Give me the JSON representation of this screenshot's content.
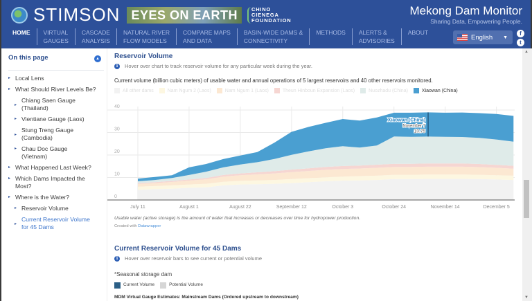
{
  "header": {
    "brand": "STIMSON",
    "partner_logo": "EYES ON EARTH",
    "foundation": [
      "CHINO",
      "CIENEGA",
      "FOUNDATION"
    ],
    "site_title": "Mekong Dam Monitor",
    "tagline": "Sharing Data, Empowering People.",
    "nav": [
      {
        "line1": "HOME",
        "line2": ""
      },
      {
        "line1": "VIRTUAL",
        "line2": "GAUGES"
      },
      {
        "line1": "CASCADE",
        "line2": "ANALYSIS"
      },
      {
        "line1": "NATURAL RIVER",
        "line2": "FLOW MODELS"
      },
      {
        "line1": "COMPARE MAPS",
        "line2": "AND DATA"
      },
      {
        "line1": "BASIN-WIDE DAMS &",
        "line2": "CONNECTIVITY"
      },
      {
        "line1": "METHODS",
        "line2": ""
      },
      {
        "line1": "ALERTS &",
        "line2": "ADVISORIES"
      },
      {
        "line1": "ABOUT",
        "line2": ""
      }
    ],
    "language": "English",
    "social": {
      "facebook": "f",
      "twitter": "t"
    }
  },
  "sidebar": {
    "title": "On this page",
    "items": [
      {
        "label": "Local Lens",
        "level": 1,
        "active": false
      },
      {
        "label": "What Should River Levels Be?",
        "level": 1,
        "active": false
      },
      {
        "label": "Chiang Saen Gauge (Thailand)",
        "level": 2,
        "active": false
      },
      {
        "label": "Vientiane Gauge (Laos)",
        "level": 2,
        "active": false
      },
      {
        "label": "Stung Treng Gauge (Cambodia)",
        "level": 2,
        "active": false
      },
      {
        "label": "Chau Doc Gauge (Vietnam)",
        "level": 2,
        "active": false
      },
      {
        "label": "What Happened Last Week?",
        "level": 1,
        "active": false
      },
      {
        "label": "Which Dams Impacted the Most?",
        "level": 1,
        "active": false
      },
      {
        "label": "Where is the Water?",
        "level": 1,
        "active": false
      },
      {
        "label": "Reservoir Volume",
        "level": 2,
        "active": false
      },
      {
        "label": "Current Reservoir Volume for 45 Dams",
        "level": 2,
        "active": true
      }
    ]
  },
  "main": {
    "section1_title": "Reservoir Volume",
    "section1_info": "Hover over chart to track reservoir volume for any particular week during the year.",
    "chart_desc": "Current volume (billion cubic meters) of usable water and annual operations of 5 largest reservoirs and 40 other reservoirs monitored.",
    "footnote": "Usable water (active storage) is the amount of water that increases or decreases over time for hydropower production.",
    "credit_prefix": "Created with ",
    "credit_link": "Datawrapper",
    "section2_title": "Current Reservoir Volume for 45 Dams",
    "section2_info": "Hover over reservoir bars to see current or potential volume",
    "seasonal_note": "*Seasonal storage dam",
    "legend2": [
      {
        "label": "Current Volume",
        "color": "#2b5f86"
      },
      {
        "label": "Potential Volume",
        "color": "#d6d6d6"
      }
    ],
    "mdm_heading": "MDM Virtual Gauge Estimates: Mainstream Dams (Ordered upstream to downstream)"
  },
  "chart_data": {
    "type": "area",
    "stacked": true,
    "title": "Current volume (billion cubic meters) of usable water and annual operations of 5 largest reservoirs and 40 other reservoirs monitored.",
    "xlabel": "",
    "ylabel": "",
    "ylim": [
      0,
      40
    ],
    "yticks": [
      0,
      10,
      20,
      30,
      40
    ],
    "grid": true,
    "legend_position": "top-left",
    "x": [
      "July 11",
      "July 18",
      "July 25",
      "August 1",
      "August 8",
      "August 15",
      "August 22",
      "August 29",
      "September 5",
      "September 12",
      "September 19",
      "September 26",
      "October 3",
      "October 10",
      "October 17",
      "October 24",
      "October 31",
      "November 7",
      "November 14",
      "November 21",
      "November 28",
      "December 5",
      "December 12"
    ],
    "xticks": [
      "July 11",
      "August 1",
      "August 22",
      "September 12",
      "October 3",
      "October 24",
      "November 14",
      "December 5"
    ],
    "series": [
      {
        "name": "All other dams",
        "color": "#f2f2f2",
        "values": [
          4.5,
          4.8,
          5.0,
          5.4,
          5.6,
          6.5,
          6.9,
          7.0,
          7.2,
          7.5,
          7.9,
          8.3,
          8.6,
          8.7,
          8.9,
          9.3,
          9.3,
          9.4,
          9.4,
          9.4,
          9.3,
          9.1,
          8.9
        ]
      },
      {
        "name": "Nam Ngum 2 (Laos)",
        "color": "#fdf7e1",
        "values": [
          1.4,
          1.4,
          1.5,
          1.5,
          1.6,
          1.6,
          1.6,
          1.7,
          1.7,
          1.8,
          1.8,
          1.8,
          1.8,
          1.9,
          1.9,
          1.9,
          1.9,
          1.9,
          1.9,
          1.9,
          1.9,
          1.9,
          1.9
        ]
      },
      {
        "name": "Nam Ngum 1 (Laos)",
        "color": "#fce8d2",
        "values": [
          1.2,
          1.3,
          1.5,
          1.7,
          2.0,
          2.3,
          2.5,
          2.7,
          2.9,
          3.1,
          3.2,
          3.3,
          3.4,
          3.4,
          3.5,
          3.5,
          3.5,
          3.5,
          3.5,
          3.5,
          3.4,
          3.3,
          3.1
        ]
      },
      {
        "name": "Theun Hinboun Expansion (Laos)",
        "color": "#f6d6d2",
        "values": [
          0.4,
          0.4,
          0.5,
          0.5,
          0.6,
          0.7,
          0.8,
          0.9,
          1.0,
          1.1,
          1.2,
          1.3,
          1.3,
          1.3,
          1.4,
          1.4,
          1.4,
          1.4,
          1.4,
          1.4,
          1.4,
          1.3,
          1.3
        ]
      },
      {
        "name": "Nuozhadu (China)",
        "color": "#dfebe9",
        "values": [
          0.8,
          1.0,
          1.3,
          2.0,
          2.8,
          3.4,
          4.0,
          4.5,
          5.4,
          6.6,
          7.5,
          8.3,
          8.8,
          8.0,
          8.5,
          12.1,
          12.0,
          12.0,
          11.9,
          11.8,
          11.6,
          11.3,
          10.7
        ]
      },
      {
        "name": "Xiaowan (China)",
        "color": "#4a9fd1",
        "values": [
          1.2,
          1.3,
          1.2,
          3.4,
          3.4,
          3.7,
          4.0,
          4.5,
          7.3,
          10.2,
          10.9,
          11.3,
          12.1,
          12.0,
          12.5,
          10.6,
          10.7,
          10.75,
          10.7,
          10.9,
          11.0,
          11.3,
          11.5
        ]
      }
    ],
    "active_series": "Xiaowan (China)",
    "tooltip": {
      "series": "Xiaowan (China)",
      "date": "November 7",
      "value": "10.75"
    }
  }
}
